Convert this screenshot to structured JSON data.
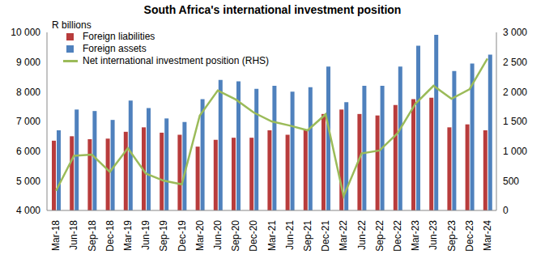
{
  "chart_data": {
    "type": "bar",
    "title": "South Africa's international investment position",
    "ylabel": "R billions",
    "categories": [
      "Mar-18",
      "Jun-18",
      "Sep-18",
      "Dec-18",
      "Mar-19",
      "Jun-19",
      "Sep-19",
      "Dec-19",
      "Mar-20",
      "Jun-20",
      "Sep-20",
      "Dec-20",
      "Mar-21",
      "Jun-21",
      "Sep-21",
      "Dec-21",
      "Mar-22",
      "Jun-22",
      "Sep-22",
      "Dec-22",
      "Mar-23",
      "Jun-23",
      "Sep-23",
      "Dec-23",
      "Mar-24"
    ],
    "series": [
      {
        "name": "Foreign liabilities",
        "type": "bar",
        "color": "#b83c3c",
        "values": [
          6350,
          6500,
          6400,
          6420,
          6650,
          6800,
          6620,
          6550,
          6150,
          6380,
          6450,
          6450,
          6700,
          6550,
          6700,
          7250,
          7400,
          7250,
          7200,
          7550,
          7750,
          7800,
          6800,
          6900,
          6700
        ]
      },
      {
        "name": "Foreign assets",
        "type": "bar",
        "color": "#4f81bd",
        "values": [
          6700,
          7400,
          7350,
          7050,
          7700,
          7450,
          7100,
          6980,
          7750,
          8400,
          8350,
          8100,
          8200,
          8000,
          8150,
          8850,
          7650,
          8200,
          8200,
          8850,
          9550,
          9920,
          8700,
          8950,
          9250
        ]
      },
      {
        "name": "Net international investment position (RHS)",
        "type": "line",
        "axis": "y2",
        "color": "#9bbb59",
        "marker": "none",
        "values": [
          330,
          920,
          940,
          650,
          1050,
          620,
          500,
          440,
          1600,
          2020,
          1870,
          1650,
          1500,
          1430,
          1350,
          1620,
          240,
          960,
          1010,
          1300,
          1800,
          2100,
          1880,
          2040,
          2560
        ]
      }
    ],
    "ylim": [
      4000,
      10000
    ],
    "yticks": [
      {
        "value": 4000,
        "label": "4 000"
      },
      {
        "value": 5000,
        "label": "5 000"
      },
      {
        "value": 6000,
        "label": "6 000"
      },
      {
        "value": 7000,
        "label": "7 000"
      },
      {
        "value": 8000,
        "label": "8 000"
      },
      {
        "value": 9000,
        "label": "9 000"
      },
      {
        "value": 10000,
        "label": "10 000"
      }
    ],
    "y2lim": [
      0,
      3000
    ],
    "y2ticks": [
      0,
      500,
      {
        "value": 1000,
        "label": "1 000"
      },
      {
        "value": 1500,
        "label": "1 500"
      },
      {
        "value": 2000,
        "label": "2 000"
      },
      {
        "value": 2500,
        "label": "2 500"
      },
      {
        "value": 3000,
        "label": "3 000"
      }
    ],
    "grid": false,
    "legend": "upper left"
  }
}
